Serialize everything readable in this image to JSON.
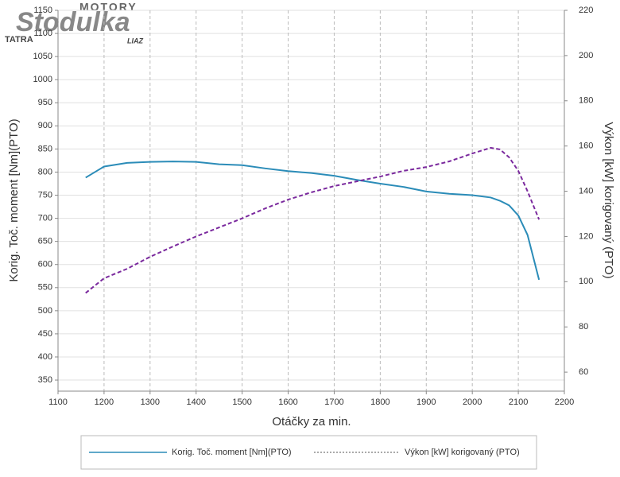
{
  "logo": {
    "top": "MOTORY",
    "name": "Stodulka",
    "left": "TATRA",
    "right": "LIAZ"
  },
  "chart_data": {
    "type": "line",
    "x_label": "Otáčky za min.",
    "y_label": "Korig. Toč. moment [Nm](PTO)",
    "y2_label": "Výkon [kW] korigovaný (PTO)",
    "x": [
      1160,
      1200,
      1250,
      1300,
      1350,
      1400,
      1450,
      1500,
      1550,
      1600,
      1650,
      1700,
      1750,
      1800,
      1850,
      1900,
      1950,
      2000,
      2040,
      2060,
      2080,
      2100,
      2120,
      2145
    ],
    "series": [
      {
        "name": "Korig. Toč. moment [Nm](PTO)",
        "color": "#2b8cb8",
        "dash": false,
        "values": [
          788,
          812,
          820,
          822,
          823,
          822,
          817,
          815,
          808,
          802,
          798,
          792,
          783,
          775,
          768,
          758,
          753,
          750,
          745,
          738,
          728,
          706,
          664,
          567
        ]
      },
      {
        "name": "Výkon [kW] korigovaný (PTO)",
        "color": "#7b2a9e",
        "dash": true,
        "axis": "y2",
        "values": [
          95,
          101.5,
          105.7,
          111,
          115.6,
          120,
          124,
          128,
          132.4,
          136.3,
          139.5,
          142.3,
          144.4,
          146.5,
          149,
          150.7,
          153.2,
          156.7,
          159.2,
          158.5,
          155,
          149,
          140,
          127.5
        ]
      }
    ],
    "xlim": [
      1100,
      2200
    ],
    "xticks": [
      1100,
      1200,
      1300,
      1400,
      1500,
      1600,
      1700,
      1800,
      1900,
      2000,
      2100,
      2200
    ],
    "ylim": [
      326,
      1150
    ],
    "yticks": [
      350,
      400,
      450,
      500,
      550,
      600,
      650,
      700,
      750,
      800,
      850,
      900,
      950,
      1000,
      1050,
      1100,
      1150
    ],
    "y2lim": [
      51.6,
      220
    ],
    "y2ticks": [
      60,
      80,
      100,
      120,
      140,
      160,
      180,
      200,
      220
    ],
    "grid": true
  }
}
